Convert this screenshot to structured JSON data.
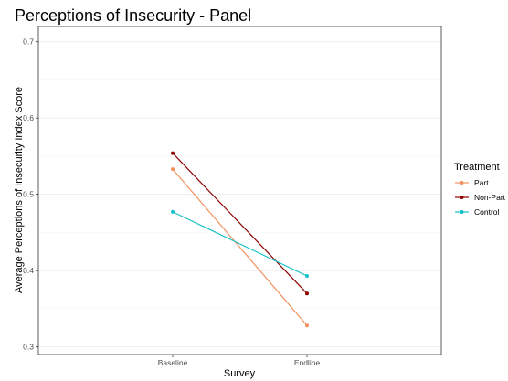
{
  "chart_data": {
    "type": "line",
    "title": "Perceptions of Insecurity - Panel",
    "xlabel": "Survey",
    "ylabel": "Average Perceptions of Insecurity Index Score",
    "categories": [
      "Baseline",
      "Endline"
    ],
    "ylim": [
      0.29,
      0.72
    ],
    "yticks": [
      0.3,
      0.4,
      0.5,
      0.6,
      0.7
    ],
    "ytick_labels": [
      "0.3",
      "0.4",
      "0.5",
      "0.6",
      "0.7"
    ],
    "grid": true,
    "legend_title": "Treatment",
    "legend_position": "right",
    "series": [
      {
        "name": "Part",
        "values": [
          0.533,
          0.328
        ],
        "color": "#f4915f"
      },
      {
        "name": "Non-Part",
        "values": [
          0.554,
          0.37
        ],
        "color": "#8b0000"
      },
      {
        "name": "Control",
        "values": [
          0.477,
          0.393
        ],
        "color": "#16c0c8"
      }
    ]
  }
}
